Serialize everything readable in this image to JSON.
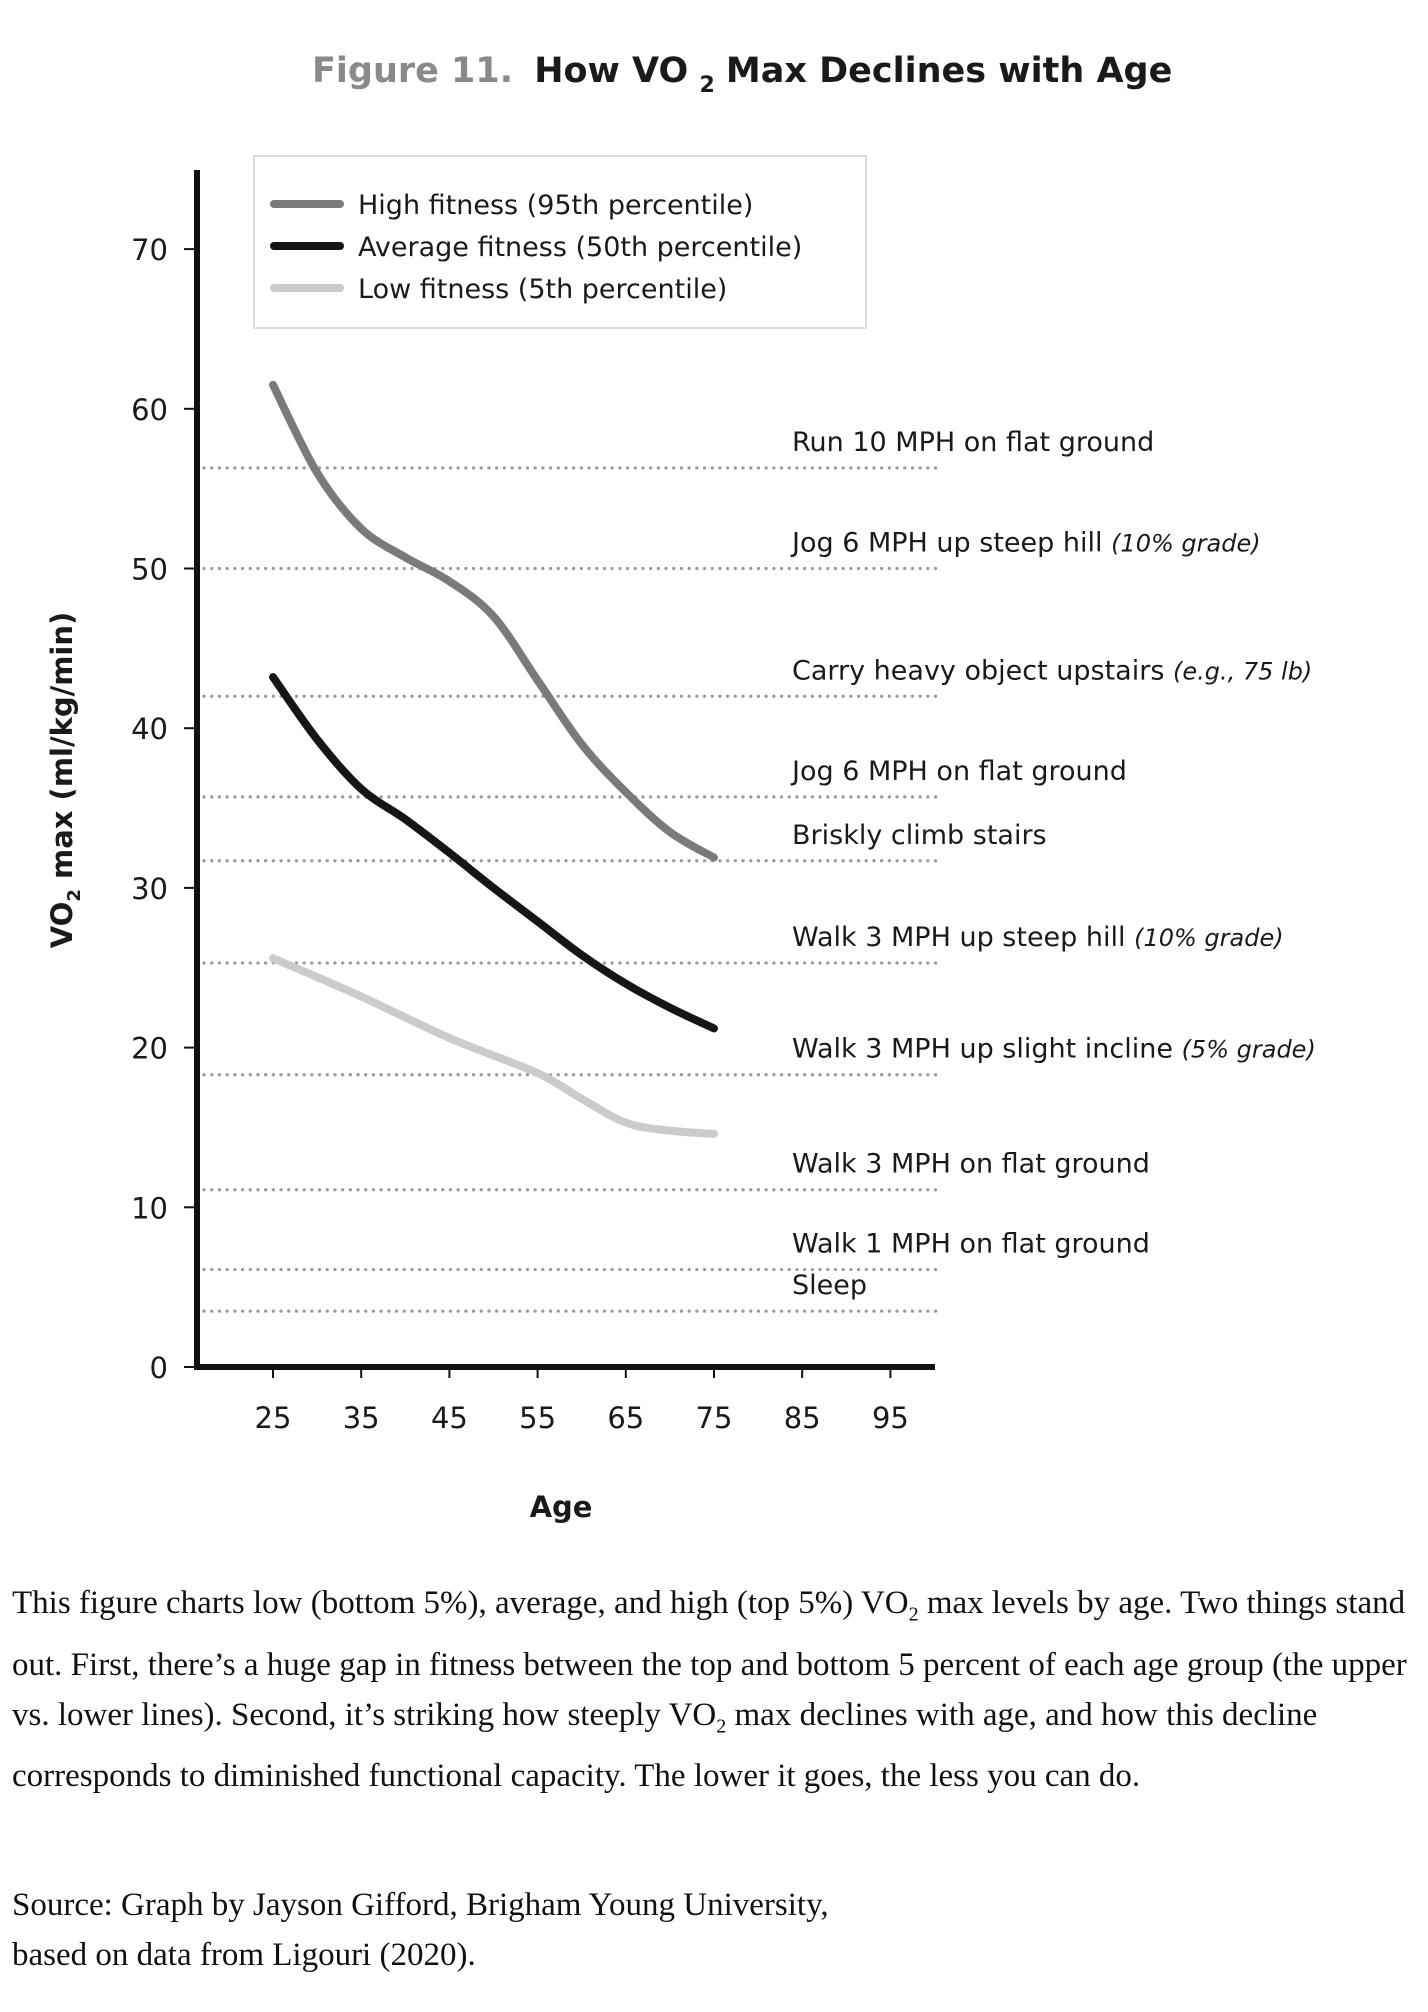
{
  "figure": {
    "title_prefix": "Figure 11.",
    "title_main_before": "How VO",
    "title_subscript": "2",
    "title_main_after": " Max Declines with Age"
  },
  "chart_data": {
    "type": "line",
    "title": "Figure 11. How VO2 Max Declines with Age",
    "xlabel": "Age",
    "ylabel_before": "VO",
    "ylabel_subscript": "2",
    "ylabel_after": " max (ml/kg/min)",
    "xlim": [
      15,
      100
    ],
    "ylim": [
      0,
      75
    ],
    "x_ticks": [
      25,
      35,
      45,
      55,
      65,
      75,
      85,
      95
    ],
    "y_ticks": [
      0,
      10,
      20,
      30,
      40,
      50,
      60,
      70
    ],
    "grid": false,
    "legend_position": "top-left",
    "series": [
      {
        "name": "High fitness (95th percentile)",
        "color": "#7a7a7a",
        "x": [
          25,
          30,
          35,
          40,
          45,
          50,
          55,
          60,
          65,
          70,
          75
        ],
        "values": [
          61.5,
          56.0,
          52.5,
          50.7,
          49.2,
          47.0,
          43.0,
          39.0,
          36.0,
          33.5,
          31.9
        ]
      },
      {
        "name": "Average fitness (50th percentile)",
        "color": "#161616",
        "x": [
          25,
          30,
          35,
          40,
          45,
          50,
          55,
          60,
          65,
          70,
          75
        ],
        "values": [
          43.2,
          39.3,
          36.2,
          34.3,
          32.2,
          30.0,
          27.9,
          25.8,
          24.0,
          22.5,
          21.2
        ]
      },
      {
        "name": "Low fitness (5th percentile)",
        "color": "#cbcbcb",
        "x": [
          25,
          35,
          45,
          55,
          60,
          65,
          70,
          75
        ],
        "values": [
          25.6,
          23.2,
          20.6,
          18.4,
          16.8,
          15.3,
          14.8,
          14.6
        ]
      }
    ],
    "reference_lines": [
      {
        "value": 56.3,
        "label": "Run 10 MPH on flat ground",
        "note": ""
      },
      {
        "value": 50.0,
        "label": "Jog 6 MPH up steep hill ",
        "note": "(10% grade)"
      },
      {
        "value": 42.0,
        "label": "Carry heavy object upstairs ",
        "note": "(e.g., 75 lb)"
      },
      {
        "value": 35.7,
        "label": "Jog 6 MPH on flat ground",
        "note": ""
      },
      {
        "value": 31.7,
        "label": "Briskly climb stairs",
        "note": ""
      },
      {
        "value": 25.3,
        "label": "Walk 3 MPH up steep hill ",
        "note": "(10% grade)"
      },
      {
        "value": 18.3,
        "label": "Walk 3 MPH up slight incline ",
        "note": "(5% grade)"
      },
      {
        "value": 11.1,
        "label": "Walk 3 MPH on flat ground",
        "note": ""
      },
      {
        "value": 6.1,
        "label": "Walk 1 MPH on flat ground",
        "note": ""
      },
      {
        "value": 3.5,
        "label": "Sleep",
        "note": ""
      }
    ]
  },
  "caption": {
    "p1_a": "This figure charts low (bottom 5%), average, and high (top 5%) VO",
    "p1_sub1": "2",
    "p1_b": " max levels by age. Two things stand out. First, there’s a huge gap in fitness between the top and bottom 5 percent of each age group (the upper vs. lower lines). Second, it’s striking how steeply VO",
    "p1_sub2": "2",
    "p1_c": " max declines with age, and how this decline corresponds to diminished functional capacity. The lower it goes, the less you can do.",
    "source_line1": "Source: Graph by Jayson Gifford, Brigham Young University,",
    "source_line2": "based on data from Ligouri (2020)."
  }
}
